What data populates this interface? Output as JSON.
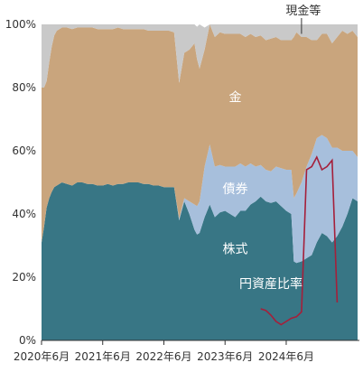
{
  "chart_data": {
    "type": "area",
    "stacked": true,
    "normalized_percent": true,
    "ylim": [
      0,
      100
    ],
    "y_ticks": [
      0,
      20,
      40,
      60,
      80,
      100
    ],
    "y_tick_labels": [
      "0%",
      "20%",
      "40%",
      "60%",
      "80%",
      "100%"
    ],
    "x_tick_labels": [
      "2020年6月",
      "2021年6月",
      "2022年6月",
      "2023年6月",
      "2024年6月"
    ],
    "x_tick_months": [
      6,
      18,
      30,
      42,
      54
    ],
    "x_range_months": [
      6,
      68
    ],
    "grid": false,
    "colors": {
      "kabushiki": "#387685",
      "saiken": "#a7bfdc",
      "kin": "#c9a57d",
      "genkin": "#c9c9c9",
      "en_ratio": "#a51f3a"
    },
    "series": [
      {
        "name": "株式",
        "label_anchor_month": 44,
        "label_anchor_value": 29,
        "points": [
          [
            6,
            31
          ],
          [
            6.5,
            36
          ],
          [
            7,
            42
          ],
          [
            7.5,
            45
          ],
          [
            8,
            47
          ],
          [
            8.5,
            48.5
          ],
          [
            9,
            49
          ],
          [
            10,
            50
          ],
          [
            11,
            49.5
          ],
          [
            12,
            49
          ],
          [
            13,
            50
          ],
          [
            14,
            50
          ],
          [
            15,
            49.5
          ],
          [
            16,
            49.5
          ],
          [
            17,
            49
          ],
          [
            18,
            49
          ],
          [
            19,
            49.5
          ],
          [
            20,
            49
          ],
          [
            21,
            49.5
          ],
          [
            22,
            49.5
          ],
          [
            23,
            50
          ],
          [
            24,
            50
          ],
          [
            25,
            50
          ],
          [
            26,
            49.5
          ],
          [
            27,
            49.5
          ],
          [
            28,
            49
          ],
          [
            29,
            49
          ],
          [
            30,
            48.5
          ],
          [
            31,
            48.5
          ],
          [
            32,
            48.5
          ],
          [
            33,
            38
          ],
          [
            34,
            44
          ],
          [
            35,
            40
          ],
          [
            36,
            35
          ],
          [
            36.5,
            33.5
          ],
          [
            37,
            34
          ],
          [
            38,
            39
          ],
          [
            39,
            43
          ],
          [
            40,
            39
          ],
          [
            41,
            40.5
          ],
          [
            42,
            41
          ],
          [
            43,
            40
          ],
          [
            44,
            39
          ],
          [
            45,
            41
          ],
          [
            46,
            41
          ],
          [
            47,
            43
          ],
          [
            48,
            44
          ],
          [
            49,
            45.5
          ],
          [
            50,
            44
          ],
          [
            51,
            43.5
          ],
          [
            52,
            44
          ],
          [
            53,
            42.5
          ],
          [
            54,
            41
          ],
          [
            55,
            40
          ],
          [
            55.5,
            25
          ],
          [
            56,
            24.5
          ],
          [
            57,
            25
          ],
          [
            58,
            26
          ],
          [
            59,
            27
          ],
          [
            60,
            31
          ],
          [
            61,
            34
          ],
          [
            62,
            33
          ],
          [
            63,
            31
          ],
          [
            64,
            33
          ],
          [
            65,
            36
          ],
          [
            66,
            40
          ],
          [
            67,
            45
          ],
          [
            68,
            44
          ]
        ]
      },
      {
        "name": "債券",
        "label_anchor_month": 44,
        "label_anchor_value": 48,
        "points": [
          [
            6,
            0
          ],
          [
            30,
            0
          ],
          [
            32,
            0
          ],
          [
            33,
            0.5
          ],
          [
            34,
            1
          ],
          [
            35,
            4
          ],
          [
            36,
            8
          ],
          [
            37,
            10
          ],
          [
            38,
            16
          ],
          [
            39,
            19
          ],
          [
            40,
            16
          ],
          [
            41,
            15
          ],
          [
            42,
            14
          ],
          [
            43,
            15
          ],
          [
            44,
            16
          ],
          [
            45,
            15
          ],
          [
            46,
            14
          ],
          [
            47,
            13
          ],
          [
            48,
            11
          ],
          [
            49,
            10
          ],
          [
            50,
            10
          ],
          [
            51,
            10
          ],
          [
            52,
            11
          ],
          [
            53,
            12
          ],
          [
            54,
            13
          ],
          [
            55,
            14
          ],
          [
            55.5,
            20
          ],
          [
            56,
            22
          ],
          [
            57,
            25
          ],
          [
            58,
            29
          ],
          [
            59,
            32
          ],
          [
            60,
            33
          ],
          [
            61,
            31
          ],
          [
            62,
            31
          ],
          [
            63,
            30
          ],
          [
            64,
            28
          ],
          [
            65,
            24
          ],
          [
            66,
            20
          ],
          [
            67,
            15
          ],
          [
            68,
            14
          ]
        ]
      },
      {
        "name": "金",
        "label_anchor_month": 44,
        "label_anchor_value": 77,
        "points": [
          [
            6,
            49
          ],
          [
            6.5,
            44
          ],
          [
            7,
            40
          ],
          [
            7.5,
            43
          ],
          [
            8,
            46
          ],
          [
            8.5,
            48
          ],
          [
            9,
            49
          ],
          [
            10,
            49
          ],
          [
            11,
            49.5
          ],
          [
            12,
            49.5
          ],
          [
            13,
            49
          ],
          [
            14,
            49
          ],
          [
            15,
            49.5
          ],
          [
            16,
            49.5
          ],
          [
            17,
            49.5
          ],
          [
            18,
            49.5
          ],
          [
            19,
            49
          ],
          [
            20,
            49.5
          ],
          [
            21,
            49.5
          ],
          [
            22,
            49
          ],
          [
            23,
            48.5
          ],
          [
            24,
            48.5
          ],
          [
            25,
            48.5
          ],
          [
            26,
            49
          ],
          [
            27,
            48.5
          ],
          [
            28,
            49
          ],
          [
            29,
            49
          ],
          [
            30,
            49.5
          ],
          [
            31,
            49.5
          ],
          [
            32,
            49
          ],
          [
            33,
            43
          ],
          [
            34,
            46
          ],
          [
            35,
            48
          ],
          [
            36,
            51
          ],
          [
            37,
            42
          ],
          [
            38,
            37
          ],
          [
            39,
            38
          ],
          [
            40,
            41
          ],
          [
            41,
            42
          ],
          [
            42,
            42
          ],
          [
            43,
            42
          ],
          [
            44,
            42
          ],
          [
            45,
            41
          ],
          [
            46,
            41
          ],
          [
            47,
            41
          ],
          [
            48,
            41
          ],
          [
            49,
            41
          ],
          [
            50,
            41
          ],
          [
            51,
            42
          ],
          [
            52,
            41
          ],
          [
            53,
            40.5
          ],
          [
            54,
            41
          ],
          [
            55,
            41
          ],
          [
            55.5,
            51
          ],
          [
            56,
            51
          ],
          [
            57,
            46
          ],
          [
            58,
            41
          ],
          [
            59,
            36
          ],
          [
            60,
            31
          ],
          [
            61,
            32
          ],
          [
            62,
            33
          ],
          [
            63,
            33
          ],
          [
            64,
            35
          ],
          [
            65,
            38
          ],
          [
            66,
            37
          ],
          [
            67,
            38
          ],
          [
            68,
            38
          ]
        ]
      },
      {
        "name": "現金等",
        "annotation_month": 57,
        "annotation_value": 97,
        "points": [
          [
            6,
            20
          ],
          [
            6.5,
            20
          ],
          [
            7,
            18
          ],
          [
            7.5,
            12
          ],
          [
            8,
            7
          ],
          [
            8.5,
            3.5
          ],
          [
            9,
            2
          ],
          [
            10,
            1.5
          ],
          [
            11,
            1
          ],
          [
            12,
            1.5
          ],
          [
            13,
            1
          ],
          [
            14,
            1
          ],
          [
            15,
            1
          ],
          [
            16,
            1
          ],
          [
            17,
            1.5
          ],
          [
            18,
            1.5
          ],
          [
            19,
            1.5
          ],
          [
            20,
            1.5
          ],
          [
            21,
            1
          ],
          [
            22,
            1.5
          ],
          [
            23,
            1.5
          ],
          [
            24,
            1.5
          ],
          [
            25,
            1.5
          ],
          [
            26,
            1.5
          ],
          [
            27,
            2
          ],
          [
            28,
            2
          ],
          [
            29,
            2
          ],
          [
            30,
            2
          ],
          [
            31,
            2
          ],
          [
            32,
            2.5
          ],
          [
            33,
            18.5
          ],
          [
            34,
            9
          ],
          [
            35,
            8
          ],
          [
            36,
            6
          ],
          [
            37,
            14.5
          ],
          [
            38,
            7
          ],
          [
            39,
            0
          ],
          [
            40,
            4
          ],
          [
            41,
            2.5
          ],
          [
            42,
            3
          ],
          [
            43,
            3
          ],
          [
            44,
            3
          ],
          [
            45,
            3
          ],
          [
            46,
            4
          ],
          [
            47,
            3
          ],
          [
            48,
            5
          ],
          [
            49,
            3.5
          ],
          [
            50,
            5
          ],
          [
            51,
            4.5
          ],
          [
            52,
            4
          ],
          [
            53,
            5
          ],
          [
            54,
            5
          ],
          [
            55,
            5
          ],
          [
            55.5,
            4
          ],
          [
            56,
            2.5
          ],
          [
            57,
            4
          ],
          [
            58,
            4
          ],
          [
            59,
            5
          ],
          [
            60,
            5
          ],
          [
            61,
            3
          ],
          [
            62,
            3
          ],
          [
            63,
            6
          ],
          [
            64,
            4
          ],
          [
            65,
            2
          ],
          [
            66,
            3
          ],
          [
            67,
            2
          ],
          [
            68,
            4
          ]
        ]
      }
    ],
    "line_series": {
      "name": "円資産比率",
      "label_anchor_month": 51,
      "label_anchor_value": 18,
      "points": [
        [
          49,
          10
        ],
        [
          50,
          9.5
        ],
        [
          51,
          8
        ],
        [
          52,
          6
        ],
        [
          53,
          5
        ],
        [
          54,
          6
        ],
        [
          55,
          7
        ],
        [
          56,
          7.5
        ],
        [
          57,
          9
        ],
        [
          58,
          54
        ],
        [
          59,
          55
        ],
        [
          60,
          58
        ],
        [
          61,
          54
        ],
        [
          62,
          55
        ],
        [
          63,
          57
        ],
        [
          64,
          12
        ]
      ]
    }
  }
}
